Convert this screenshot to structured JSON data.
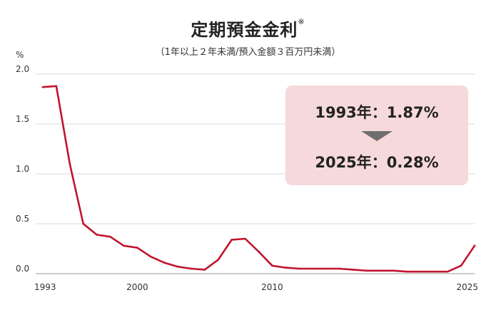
{
  "header": {
    "title": "定期預金金利",
    "title_mark": "※",
    "subtitle": "（1年以上２年未満/預入金額３百万円未満）",
    "unit": "%"
  },
  "callout": {
    "start_label": "1993年：1.87%",
    "end_label": "2025年：0.28%"
  },
  "colors": {
    "line": "#c0152f",
    "grid": "#d8d8d8",
    "callout_bg": "#f6d9da",
    "arrow": "#6f6f6f"
  },
  "chart_data": {
    "type": "line",
    "title": "定期預金金利",
    "x_ticks": [
      "1993",
      "2000",
      "2010",
      "2025"
    ],
    "y_ticks": [
      "2.0",
      "1.5",
      "1.0",
      "0.5",
      "0.0"
    ],
    "xlim": [
      1993,
      2025
    ],
    "ylim": [
      0,
      2.0
    ],
    "grid": true,
    "series": [
      {
        "x": [
          1993,
          1994,
          1995,
          1996,
          1997,
          1998,
          1999,
          2000,
          2001,
          2002,
          2003,
          2004,
          2005,
          2006,
          2007,
          2008,
          2009,
          2010,
          2011,
          2012,
          2013,
          2014,
          2015,
          2016,
          2017,
          2018,
          2019,
          2020,
          2021,
          2022,
          2023,
          2024,
          2025
        ],
        "values": [
          1.87,
          1.88,
          1.1,
          0.5,
          0.39,
          0.37,
          0.28,
          0.26,
          0.17,
          0.11,
          0.07,
          0.05,
          0.04,
          0.14,
          0.34,
          0.35,
          0.22,
          0.08,
          0.06,
          0.05,
          0.05,
          0.05,
          0.05,
          0.04,
          0.03,
          0.03,
          0.03,
          0.02,
          0.02,
          0.02,
          0.02,
          0.08,
          0.28
        ]
      }
    ]
  }
}
